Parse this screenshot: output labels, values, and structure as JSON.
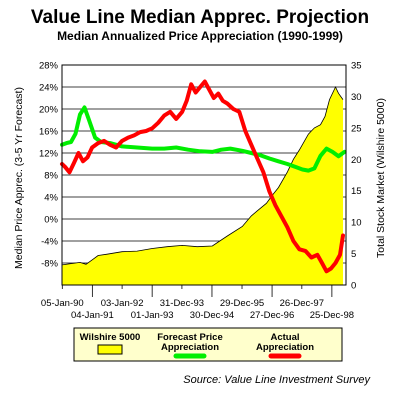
{
  "chart_data": {
    "type": "line",
    "title": "Value Line Median Apprec. Projection",
    "subtitle": "Median Annualized Price Appreciation (1990-1999)",
    "ylabel_left": "Median Price Apprec. (3-5 Yr Forecast)",
    "ylabel_right": "Total Stock Market (Wilshire 5000)",
    "source": "Source: Value Line Investment Survey",
    "x_tick_labels_row1": [
      "05-Jan-90",
      "03-Jan-92",
      "31-Dec-93",
      "29-Dec-95",
      "26-Dec-97"
    ],
    "x_tick_labels_row2": [
      "04-Jan-91",
      "01-Jan-93",
      "30-Dec-94",
      "27-Dec-96",
      "25-Dec-98"
    ],
    "x_tick_years": [
      1990.01,
      1991.01,
      1992.0,
      1993.0,
      1993.99,
      1994.99,
      1995.99,
      1996.99,
      1997.98,
      1998.98
    ],
    "xlim": [
      1990.0,
      1999.45
    ],
    "y_left": {
      "min": -12,
      "max": 28,
      "ticks": [
        -8,
        -4,
        0,
        4,
        8,
        12,
        16,
        20,
        24,
        28
      ],
      "tick_labels": [
        "-8%",
        "-4%",
        "0%",
        "4%",
        "8%",
        "12%",
        "16%",
        "20%",
        "24%",
        "28%"
      ]
    },
    "y_right": {
      "min": 0,
      "max": 35,
      "ticks": [
        0,
        5,
        10,
        15,
        20,
        25,
        30,
        35
      ],
      "tick_labels": [
        "0",
        "5",
        "10",
        "15",
        "20",
        "25",
        "30",
        "35"
      ]
    },
    "grid": "horizontal",
    "legend_position": "bottom",
    "series": [
      {
        "name": "Wilshire 5000",
        "kind": "area",
        "axis": "right",
        "color": "#ffff00",
        "x": [
          1990.0,
          1990.3,
          1990.6,
          1990.8,
          1991.0,
          1991.2,
          1991.5,
          1992.0,
          1992.5,
          1993.0,
          1993.5,
          1994.0,
          1994.5,
          1995.0,
          1995.5,
          1996.0,
          1996.3,
          1996.5,
          1996.8,
          1997.0,
          1997.2,
          1997.5,
          1997.7,
          1997.9,
          1998.2,
          1998.4,
          1998.6,
          1998.75,
          1998.9,
          1999.1,
          1999.2,
          1999.35
        ],
        "values": [
          3.2,
          3.4,
          3.6,
          3.3,
          4.0,
          4.7,
          4.9,
          5.3,
          5.4,
          5.8,
          6.1,
          6.3,
          6.1,
          6.2,
          7.8,
          9.3,
          11.0,
          11.8,
          13.0,
          14.3,
          15.5,
          18.0,
          20.0,
          21.5,
          24.0,
          25.0,
          25.5,
          26.8,
          29.5,
          31.5,
          30.5,
          29.5
        ]
      },
      {
        "name": "Forecast Price Appreciation",
        "kind": "line",
        "axis": "left",
        "color": "#00ee00",
        "x": [
          1990.0,
          1990.15,
          1990.3,
          1990.45,
          1990.6,
          1990.75,
          1990.9,
          1991.1,
          1991.3,
          1991.6,
          1992.0,
          1992.5,
          1993.0,
          1993.4,
          1993.8,
          1994.2,
          1994.6,
          1995.0,
          1995.3,
          1995.6,
          1996.0,
          1996.3,
          1996.6,
          1996.9,
          1997.2,
          1997.5,
          1997.8,
          1998.0,
          1998.2,
          1998.4,
          1998.6,
          1998.8,
          1999.0,
          1999.2,
          1999.4
        ],
        "values": [
          13.5,
          13.8,
          14.0,
          15.5,
          19.0,
          20.3,
          18.0,
          14.8,
          14.0,
          13.8,
          13.2,
          13.0,
          12.8,
          12.8,
          13.0,
          12.6,
          12.3,
          12.2,
          12.6,
          12.8,
          12.4,
          12.0,
          11.6,
          11.0,
          10.5,
          10.0,
          9.4,
          9.0,
          8.8,
          9.2,
          11.5,
          12.8,
          12.2,
          11.4,
          12.2
        ]
      },
      {
        "name": "Actual Appreciation",
        "kind": "line",
        "axis": "left",
        "color": "#ff0000",
        "x": [
          1990.0,
          1990.1,
          1990.25,
          1990.4,
          1990.55,
          1990.7,
          1990.85,
          1991.0,
          1991.2,
          1991.4,
          1991.6,
          1991.8,
          1992.0,
          1992.2,
          1992.4,
          1992.6,
          1992.8,
          1993.0,
          1993.2,
          1993.4,
          1993.6,
          1993.8,
          1994.0,
          1994.15,
          1994.3,
          1994.45,
          1994.6,
          1994.75,
          1994.9,
          1995.05,
          1995.2,
          1995.35,
          1995.5,
          1995.7,
          1995.9,
          1996.1,
          1996.3,
          1996.5,
          1996.7,
          1996.9,
          1997.1,
          1997.3,
          1997.5,
          1997.7,
          1997.9,
          1998.1,
          1998.3,
          1998.5,
          1998.65,
          1998.8,
          1998.95,
          1999.1,
          1999.25,
          1999.35
        ],
        "values": [
          10.0,
          9.5,
          8.5,
          10.2,
          12.0,
          10.5,
          11.2,
          13.0,
          13.8,
          14.2,
          13.5,
          13.0,
          14.2,
          14.8,
          15.2,
          15.8,
          16.0,
          16.5,
          17.5,
          18.8,
          19.5,
          18.2,
          19.5,
          21.5,
          24.5,
          23.0,
          24.0,
          25.0,
          23.5,
          22.0,
          22.8,
          21.5,
          21.0,
          20.0,
          19.5,
          16.0,
          13.5,
          11.0,
          8.5,
          5.0,
          2.5,
          0.5,
          -1.5,
          -4.0,
          -5.5,
          -5.8,
          -7.0,
          -6.5,
          -8.0,
          -9.5,
          -9.0,
          -8.0,
          -6.5,
          -3.0
        ]
      }
    ],
    "legend": [
      {
        "label": "Wilshire 5000",
        "color": "#ffff00",
        "swatch": "box"
      },
      {
        "label": "Forecast Price Appreciation",
        "color": "#00ee00",
        "swatch": "line"
      },
      {
        "label": "Actual Appreciation",
        "color": "#ff0000",
        "swatch": "line"
      }
    ]
  }
}
